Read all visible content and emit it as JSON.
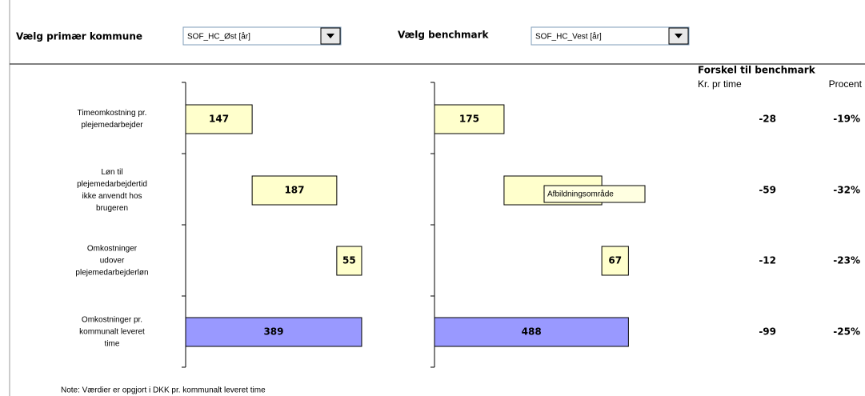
{
  "controls": {
    "primary_label": "Vælg primær kommune",
    "primary_value": "SOF_HC_Øst [år]",
    "benchmark_label": "Vælg benchmark",
    "benchmark_value": "SOF_HC_Vest [år]"
  },
  "type": "waterfall",
  "categories": [
    [
      "Timeomkostning pr.",
      "plejemedarbejder"
    ],
    [
      "Løn til",
      "plejemedarbejdertid",
      "ikke anvendt hos",
      "brugeren"
    ],
    [
      "Omkostninger",
      "udover",
      "plejemedarbejderløn"
    ],
    [
      "Omkostninger pr.",
      "kommunalt leveret",
      "time"
    ]
  ],
  "charts": [
    {
      "values": [
        147,
        187,
        55,
        389
      ],
      "xlim": [
        0,
        550
      ]
    },
    {
      "values": [
        175,
        246,
        67,
        488
      ],
      "xlim": [
        0,
        600
      ]
    }
  ],
  "colors": {
    "component": "#ffffcc",
    "total": "#9999ff"
  },
  "difference": {
    "title": "Forskel til benchmark",
    "col1": "Kr. pr time",
    "col2": "Procent",
    "kr": [
      -28,
      -59,
      -12,
      -99
    ],
    "pct": [
      "-19%",
      "-32%",
      "-23%",
      "-25%"
    ]
  },
  "tooltip": "Afbildningsområde",
  "note": "Note: Værdier er opgjort i DKK pr. kommunalt leveret time"
}
